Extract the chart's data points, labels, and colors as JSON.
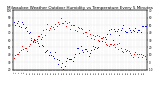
{
  "title": "Milwaukee Weather Outdoor Humidity vs Temperature Every 5 Minutes",
  "title_fontsize": 3.0,
  "background_color": "#ffffff",
  "grid_color": "#bbbbbb",
  "blue_color": "#0000dd",
  "red_color": "#dd0000",
  "ylim_left": [
    20,
    100
  ],
  "ylim_right": [
    -10,
    70
  ],
  "num_points": 100,
  "seed": 42,
  "figsize": [
    1.6,
    0.87
  ],
  "dpi": 100
}
